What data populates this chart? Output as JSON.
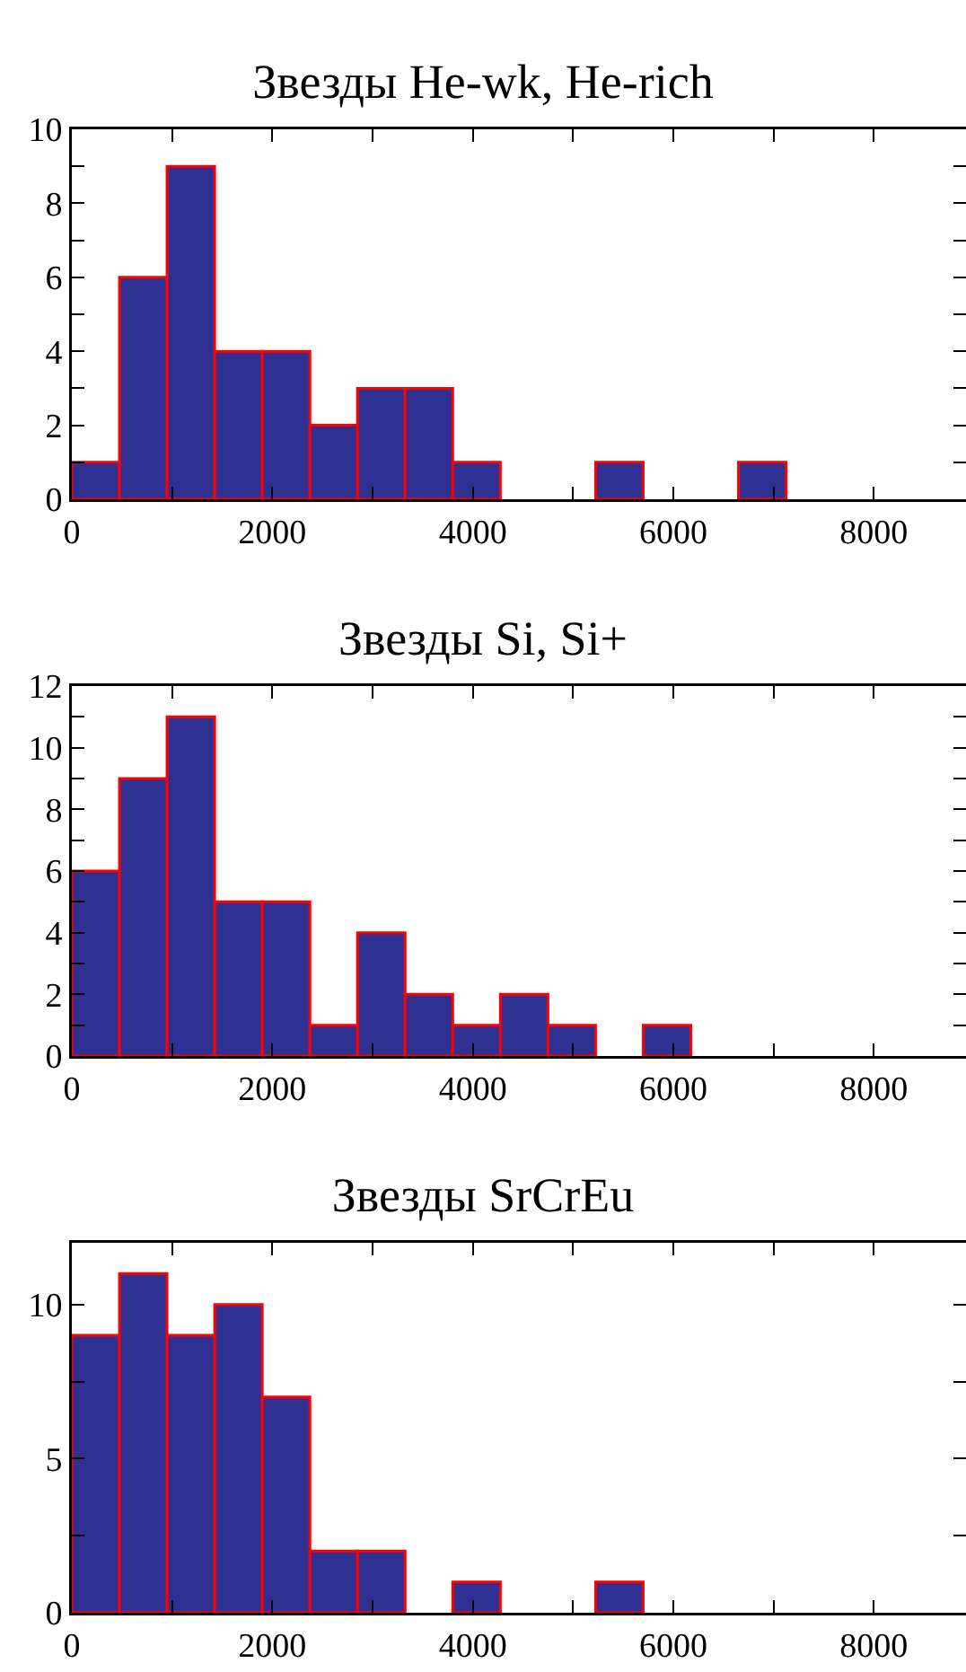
{
  "chart_data": [
    {
      "type": "histogram",
      "title": "Звезды He-wk, He-rich",
      "bins": [
        0,
        475,
        950,
        1425,
        1900,
        2375,
        2850,
        3325,
        3800,
        4275,
        4750,
        5225,
        5700,
        6175,
        6650,
        7125,
        7600,
        8075,
        8550
      ],
      "values": [
        1,
        6,
        9,
        4,
        4,
        2,
        3,
        3,
        1,
        0,
        0,
        1,
        0,
        0,
        1,
        0,
        0,
        0
      ],
      "color": "#2e3192",
      "xlim": [
        0,
        8920
      ],
      "xticks": [
        0,
        {
          "value": 1000,
          "label": null
        },
        2000,
        {
          "value": 3000,
          "label": null
        },
        4000,
        {
          "value": 5000,
          "label": null
        },
        6000,
        {
          "value": 7000,
          "label": null
        },
        8000
      ],
      "ylim": [
        0,
        10
      ],
      "yticks": [
        0,
        {
          "value": 1,
          "label": null
        },
        2,
        {
          "value": 3,
          "label": null
        },
        4,
        {
          "value": 5,
          "label": null
        },
        6,
        {
          "value": 7,
          "label": null
        },
        8,
        {
          "value": 9,
          "label": null
        },
        10
      ],
      "grid": false
    },
    {
      "type": "histogram",
      "title": "Звезды Si, Si+",
      "bins": [
        0,
        475,
        950,
        1425,
        1900,
        2375,
        2850,
        3325,
        3800,
        4275,
        4750,
        5225,
        5700,
        6175,
        6650,
        7125,
        7600,
        8075,
        8550
      ],
      "values": [
        6,
        9,
        11,
        5,
        5,
        1,
        4,
        2,
        1,
        2,
        1,
        0,
        1,
        0,
        0,
        0,
        0,
        0
      ],
      "color": "#2e3192",
      "xlim": [
        0,
        8920
      ],
      "xticks": [
        0,
        {
          "value": 1000,
          "label": null
        },
        2000,
        {
          "value": 3000,
          "label": null
        },
        4000,
        {
          "value": 5000,
          "label": null
        },
        6000,
        {
          "value": 7000,
          "label": null
        },
        8000
      ],
      "ylim": [
        0,
        12
      ],
      "yticks": [
        0,
        {
          "value": 1,
          "label": null
        },
        2,
        {
          "value": 3,
          "label": null
        },
        4,
        {
          "value": 5,
          "label": null
        },
        6,
        {
          "value": 7,
          "label": null
        },
        8,
        {
          "value": 9,
          "label": null
        },
        10,
        {
          "value": 11,
          "label": null
        },
        12
      ],
      "grid": false
    },
    {
      "type": "histogram",
      "title": "Звезды SrCrEu",
      "bins": [
        0,
        475,
        950,
        1425,
        1900,
        2375,
        2850,
        3325,
        3800,
        4275,
        4750,
        5225,
        5700,
        6175,
        6650,
        7125,
        7600,
        8075,
        8550
      ],
      "values": [
        9,
        11,
        9,
        10,
        7,
        2,
        2,
        0,
        1,
        0,
        0,
        1,
        0,
        0,
        0,
        0,
        0,
        0
      ],
      "color": "#2e3192",
      "xlim": [
        0,
        8920
      ],
      "xticks": [
        0,
        {
          "value": 1000,
          "label": null
        },
        2000,
        {
          "value": 3000,
          "label": null
        },
        4000,
        {
          "value": 5000,
          "label": null
        },
        6000,
        {
          "value": 7000,
          "label": null
        },
        8000
      ],
      "ylim": [
        0,
        12
      ],
      "yticks": [
        0,
        {
          "value": 2.5,
          "label": null
        },
        5,
        {
          "value": 7.5,
          "label": null
        },
        10
      ],
      "grid": false
    }
  ]
}
